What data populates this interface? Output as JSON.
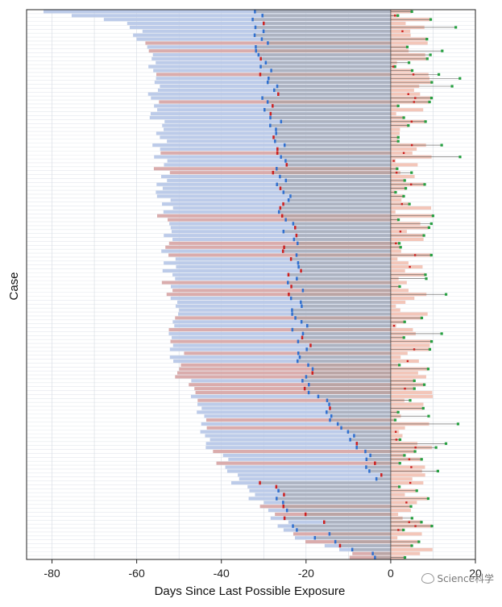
{
  "chart_data": {
    "type": "bar",
    "subtype": "horizontal swimmer plot",
    "xlabel": "Days Since Last Possible Exposure",
    "ylabel": "Case",
    "xlim": [
      -86,
      20
    ],
    "xticks": [
      -80,
      -60,
      -40,
      -20,
      0,
      20
    ],
    "xtick_labels": [
      "-80",
      "-60",
      "-40",
      "-20",
      "0",
      "20"
    ],
    "grid": "horizontal row lines and vertical grid lines",
    "colors": {
      "exposure_window": "#b8c8e8",
      "exposure_window_highlight": "#d8a8a8",
      "row_bar": "#a0a0a0",
      "post_exposure": "#f0b8a8",
      "start_marker": "#2f6fcf",
      "alt_marker": "#cc2020",
      "end_marker": "#25a040",
      "axis": "#222222",
      "grid": "#e4e8ee"
    },
    "num_cases": 140,
    "exposure_start_days": {
      "first": -82,
      "ramp": [
        [
          0,
          -82
        ],
        [
          3,
          -61
        ],
        [
          15,
          -56
        ],
        [
          40,
          -54
        ],
        [
          70,
          -52
        ],
        [
          90,
          -50
        ],
        [
          105,
          -45
        ],
        [
          118,
          -38
        ],
        [
          126,
          -30
        ],
        [
          134,
          -22
        ],
        [
          139,
          -8
        ]
      ]
    },
    "series": [
      {
        "name": "",
        "description_key": "exposure_window"
      },
      {
        "name": "",
        "description_key": "post_exposure"
      }
    ]
  },
  "watermark": {
    "text": "Science科学"
  }
}
